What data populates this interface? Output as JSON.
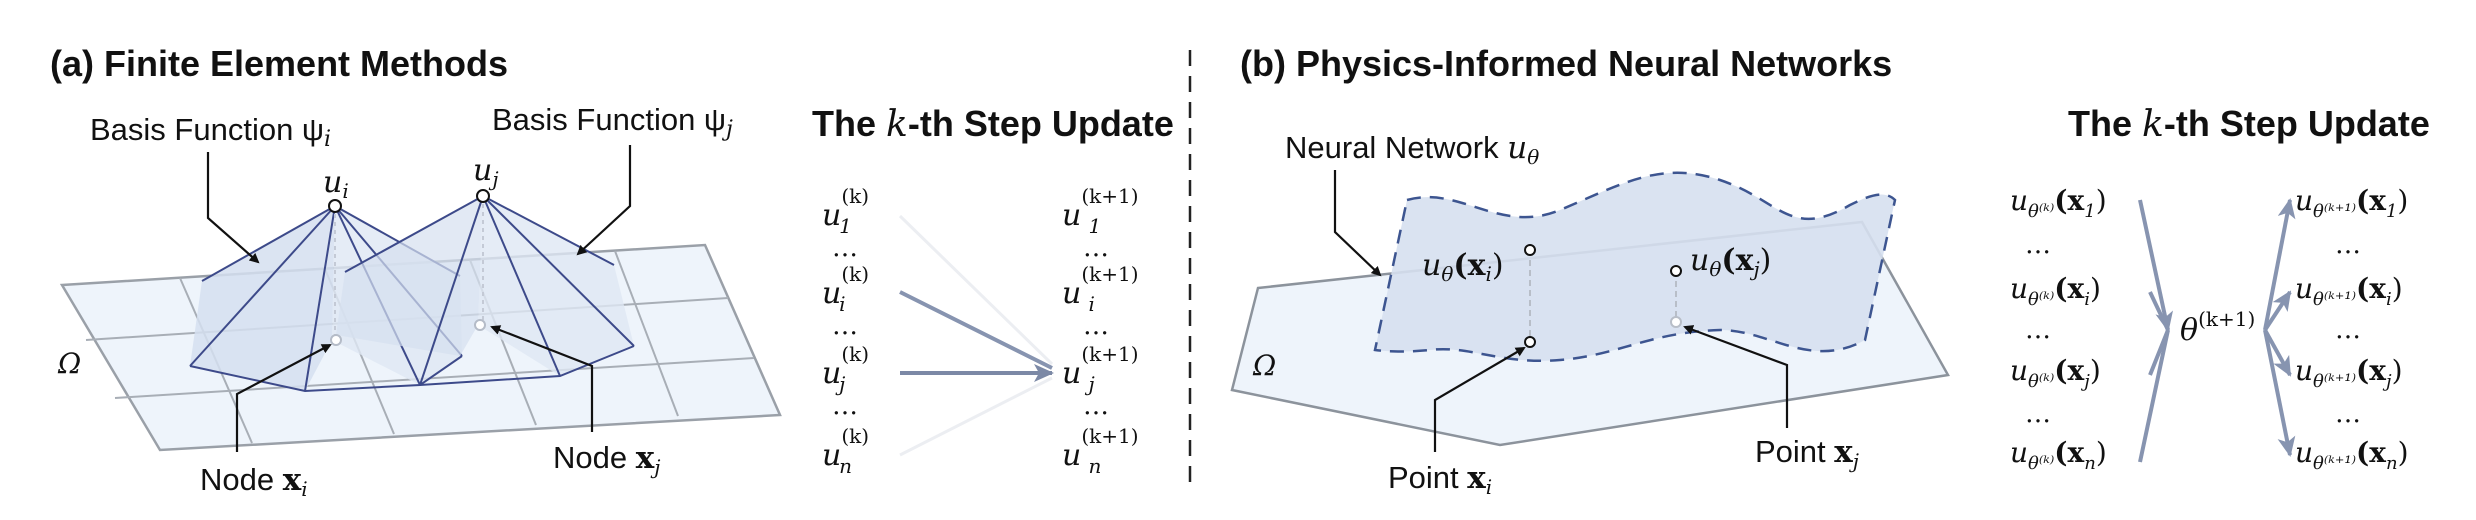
{
  "panel_a": {
    "title": "(a) Finite Element Methods",
    "basis_i": "Basis Function ψ",
    "basis_i_sub": "i",
    "basis_j": "Basis Function ψ",
    "basis_j_sub": "j",
    "u_i": "u",
    "u_i_sub": "i",
    "u_j": "u",
    "u_j_sub": "j",
    "domain": "Ω",
    "node_i": "Node ",
    "node_i_var": "x",
    "node_i_sub": "i",
    "node_j": "Node ",
    "node_j_var": "x",
    "node_j_sub": "j"
  },
  "panel_a_update": {
    "title_pre": "The ",
    "title_k": "k",
    "title_post": "-th Step Update",
    "left": [
      {
        "base": "u",
        "sub": "1",
        "sup": "(k)"
      },
      {
        "base": "u",
        "sub": "i",
        "sup": "(k)"
      },
      {
        "base": "u",
        "sub": "j",
        "sup": "(k)"
      },
      {
        "base": "u",
        "sub": "n",
        "sup": "(k)"
      }
    ],
    "right": [
      {
        "base": "u",
        "sub": "1",
        "sup": "(k+1)"
      },
      {
        "base": "u",
        "sub": "i",
        "sup": "(k+1)"
      },
      {
        "base": "u",
        "sub": "j",
        "sup": "(k+1)"
      },
      {
        "base": "u",
        "sub": "n",
        "sup": "(k+1)"
      }
    ],
    "ellipsis": "…"
  },
  "panel_b": {
    "title": "(b) Physics-Informed Neural Networks",
    "nn_label": "Neural Network ",
    "nn_var": "u",
    "nn_sub": "θ",
    "ut_xi": "u",
    "ut_xi_sub": "θ",
    "ut_xi_arg": "(x",
    "ut_xi_arg_sub": "i",
    "ut_xj": "u",
    "ut_xj_sub": "θ",
    "ut_xj_arg": "(x",
    "ut_xj_arg_sub": "j",
    "close": ")",
    "domain": "Ω",
    "point_i": "Point ",
    "point_i_var": "x",
    "point_i_sub": "i",
    "point_j": "Point ",
    "point_j_var": "x",
    "point_j_sub": "j"
  },
  "panel_b_update": {
    "title_pre": "The ",
    "title_k": "k",
    "title_post": "-th Step Update",
    "left": [
      {
        "sub": "θ⁽ᵏ⁾",
        "arg": "1"
      },
      {
        "sub": "θ⁽ᵏ⁾",
        "arg": "i"
      },
      {
        "sub": "θ⁽ᵏ⁾",
        "arg": "j"
      },
      {
        "sub": "θ⁽ᵏ⁾",
        "arg": "n"
      }
    ],
    "right": [
      {
        "sub": "θ⁽ᵏ⁺¹⁾",
        "arg": "1"
      },
      {
        "sub": "θ⁽ᵏ⁺¹⁾",
        "arg": "i"
      },
      {
        "sub": "θ⁽ᵏ⁺¹⁾",
        "arg": "j"
      },
      {
        "sub": "θ⁽ᵏ⁺¹⁾",
        "arg": "n"
      }
    ],
    "center": "θ",
    "center_sup": "(k+1)",
    "ellipsis": "…"
  },
  "colors": {
    "mesh_fill": "#eef4fb",
    "mesh_line": "#9aa0a8",
    "pyramid_fill": "#d5dff0",
    "pyramid_line": "#3d4a8a",
    "arrow": "#7c89a6",
    "nn_dash": "#3d5590"
  }
}
